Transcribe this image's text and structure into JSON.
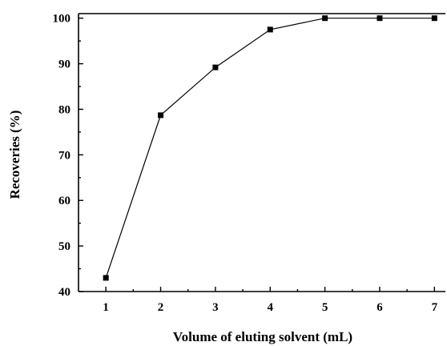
{
  "chart_data": {
    "type": "line",
    "title": "",
    "xlabel": "Volume of eluting solvent (mL)",
    "ylabel": "Recoveries (%)",
    "x": [
      1,
      2,
      3,
      4,
      5,
      6,
      7
    ],
    "series": [
      {
        "values": [
          43,
          78.7,
          89.2,
          97.5,
          100,
          100,
          100
        ]
      }
    ],
    "xlim": [
      0.5,
      7.2
    ],
    "ylim": [
      40,
      101
    ],
    "xticks": [
      "1",
      "2",
      "3",
      "4",
      "5",
      "6",
      "7"
    ],
    "yticks": [
      "40",
      "50",
      "60",
      "70",
      "80",
      "90",
      "100"
    ],
    "marker": "square",
    "grid": false,
    "colors": {
      "line": "#000000",
      "marker": "#000000"
    }
  }
}
